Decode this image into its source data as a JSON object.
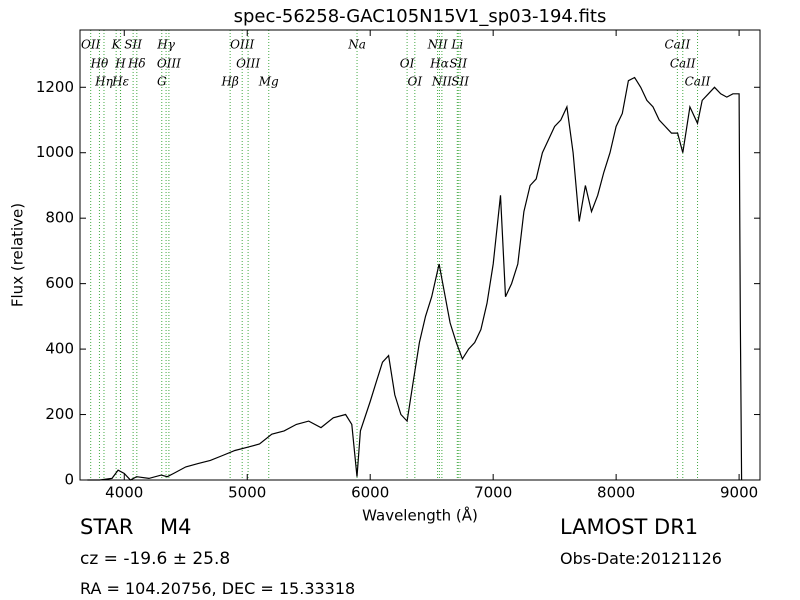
{
  "chart_data": {
    "type": "line",
    "title": "spec-56258-GAC105N15V1_sp03-194.fits",
    "x_label": "Wavelength (Å)",
    "y_label": "Flux (relative)",
    "xlim": [
      3640,
      9170
    ],
    "ylim": [
      0,
      1375
    ],
    "xticks": [
      4000,
      5000,
      6000,
      7000,
      8000,
      9000
    ],
    "yticks": [
      0,
      200,
      400,
      600,
      800,
      1000,
      1200
    ],
    "x": [
      3700,
      3800,
      3900,
      3950,
      4000,
      4050,
      4100,
      4200,
      4300,
      4350,
      4400,
      4500,
      4600,
      4700,
      4800,
      4900,
      5000,
      5100,
      5200,
      5300,
      5400,
      5500,
      5600,
      5700,
      5800,
      5850,
      5893,
      5920,
      6000,
      6050,
      6100,
      6150,
      6200,
      6250,
      6300,
      6350,
      6400,
      6450,
      6500,
      6560,
      6600,
      6650,
      6700,
      6750,
      6800,
      6850,
      6900,
      6950,
      7000,
      7060,
      7100,
      7150,
      7200,
      7250,
      7300,
      7350,
      7400,
      7450,
      7500,
      7550,
      7600,
      7650,
      7700,
      7750,
      7800,
      7850,
      7900,
      7950,
      8000,
      8050,
      8100,
      8150,
      8200,
      8250,
      8300,
      8350,
      8400,
      8450,
      8500,
      8542,
      8600,
      8662,
      8700,
      8750,
      8800,
      8850,
      8900,
      8950,
      9000,
      9010,
      9020
    ],
    "series": [
      {
        "name": "Flux",
        "color": "#000000",
        "values": [
          0,
          0,
          5,
          30,
          20,
          0,
          10,
          5,
          15,
          10,
          20,
          40,
          50,
          60,
          75,
          90,
          100,
          110,
          140,
          150,
          170,
          180,
          160,
          190,
          200,
          170,
          10,
          150,
          240,
          300,
          360,
          380,
          260,
          200,
          180,
          300,
          420,
          500,
          560,
          660,
          580,
          480,
          420,
          370,
          400,
          420,
          460,
          540,
          660,
          870,
          560,
          600,
          660,
          820,
          900,
          920,
          1000,
          1040,
          1080,
          1100,
          1140,
          1000,
          790,
          900,
          820,
          870,
          940,
          1000,
          1080,
          1120,
          1220,
          1230,
          1200,
          1160,
          1140,
          1100,
          1080,
          1060,
          1060,
          1000,
          1140,
          1090,
          1160,
          1180,
          1200,
          1180,
          1170,
          1180,
          1180,
          500,
          0
        ]
      }
    ],
    "line_color": "#44aa44",
    "lines": [
      {
        "name": "OII",
        "wavelength": 3727
      },
      {
        "name": "Hθ",
        "wavelength": 3798
      },
      {
        "name": "Hη",
        "wavelength": 3835
      },
      {
        "name": "K",
        "wavelength": 3934
      },
      {
        "name": "H",
        "wavelength": 3969
      },
      {
        "name": "Hε",
        "wavelength": 3970
      },
      {
        "name": "SII",
        "wavelength": 4072
      },
      {
        "name": "Hδ",
        "wavelength": 4102
      },
      {
        "name": "G",
        "wavelength": 4305
      },
      {
        "name": "Hγ",
        "wavelength": 4340
      },
      {
        "name": "OIII",
        "wavelength": 4363
      },
      {
        "name": "Hβ",
        "wavelength": 4861
      },
      {
        "name": "OIII",
        "wavelength": 4959
      },
      {
        "name": "OIII",
        "wavelength": 5007
      },
      {
        "name": "Mg",
        "wavelength": 5175
      },
      {
        "name": "Na",
        "wavelength": 5893
      },
      {
        "name": "OI",
        "wavelength": 6300
      },
      {
        "name": "OI",
        "wavelength": 6363
      },
      {
        "name": "NII",
        "wavelength": 6548
      },
      {
        "name": "Hα",
        "wavelength": 6563
      },
      {
        "name": "NII",
        "wavelength": 6583
      },
      {
        "name": "Li",
        "wavelength": 6708
      },
      {
        "name": "SII",
        "wavelength": 6716
      },
      {
        "name": "SII",
        "wavelength": 6731
      },
      {
        "name": "CaII",
        "wavelength": 8498
      },
      {
        "name": "CaII",
        "wavelength": 8542
      },
      {
        "name": "CaII",
        "wavelength": 8662
      }
    ]
  },
  "info": {
    "class": "STAR",
    "subclass": "M4",
    "cz": "cz = -19.6 ± 25.8",
    "coords": "RA = 104.20756, DEC = 15.33318",
    "survey": "LAMOST DR1",
    "obs_date": "Obs-Date:20121126"
  }
}
